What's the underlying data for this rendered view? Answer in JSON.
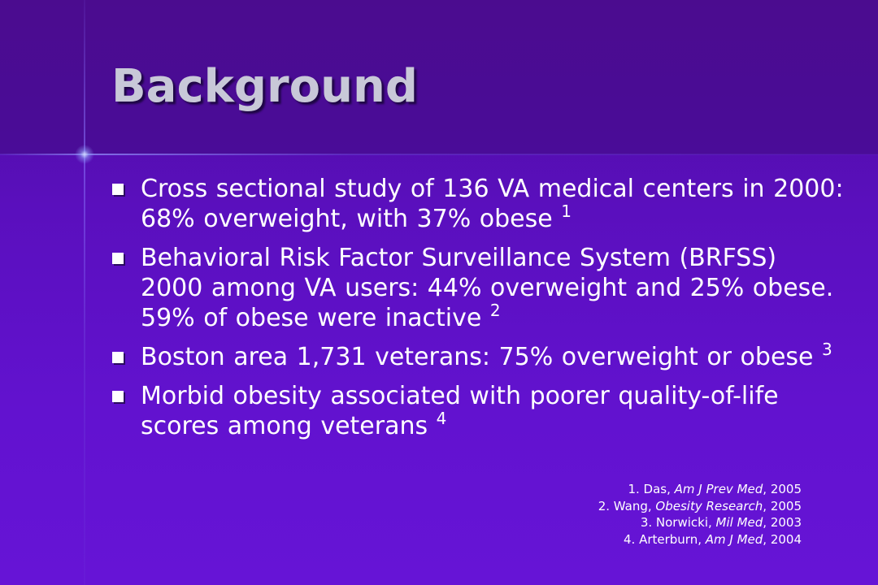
{
  "slide": {
    "title": "Background"
  },
  "bullets": [
    {
      "text": "Cross sectional study of 136 VA medical centers in 2000: 68% overweight, with 37% obese ",
      "ref": "1"
    },
    {
      "text": "Behavioral Risk Factor Surveillance System (BRFSS) 2000 among VA users: 44% overweight and 25% obese.  59% of obese were inactive ",
      "ref": "2"
    },
    {
      "text": "Boston area 1,731 veterans: 75% overweight or obese ",
      "ref": "3"
    },
    {
      "text": "Morbid obesity associated with poorer quality-of-life scores among veterans ",
      "ref": "4"
    }
  ],
  "references": [
    {
      "prefix": "1. Das, ",
      "source": "Am J Prev Med",
      "suffix": ", 2005"
    },
    {
      "prefix": "2. Wang, ",
      "source": "Obesity Research",
      "suffix": ", 2005"
    },
    {
      "prefix": "3. Norwicki, ",
      "source": "Mil Med",
      "suffix": ", 2003"
    },
    {
      "prefix": "4. Arterburn, ",
      "source": "Am J Med",
      "suffix": ", 2004"
    }
  ],
  "colors": {
    "background": "#5a0fbd",
    "header": "#4b0c8f",
    "title": "#c8c8d8",
    "text": "#ffffff"
  }
}
